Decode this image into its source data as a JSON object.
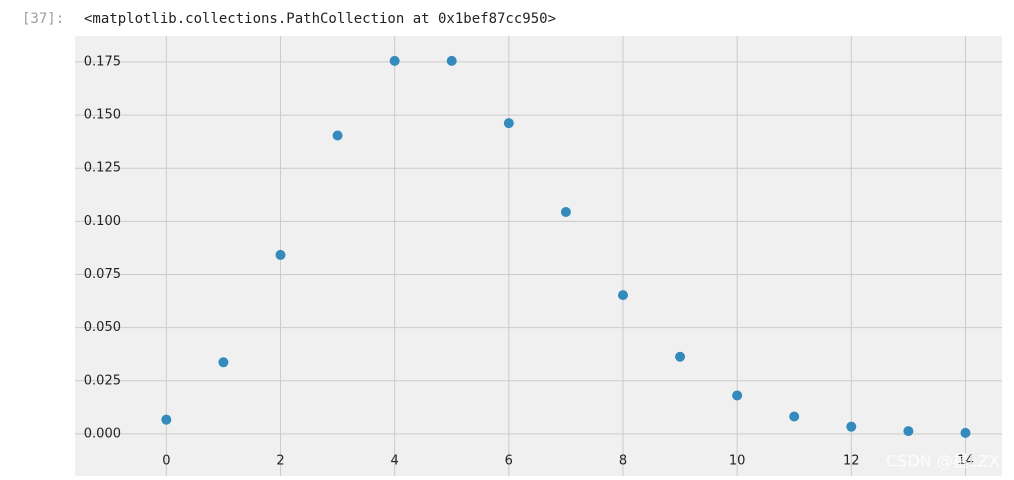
{
  "cell": {
    "prompt": "[37]:",
    "output": "<matplotlib.collections.PathCollection at 0x1bef87cc950>"
  },
  "watermark": "CSDN @星LZX",
  "chart_data": {
    "type": "scatter",
    "x": [
      0,
      1,
      2,
      3,
      4,
      5,
      6,
      7,
      8,
      9,
      10,
      11,
      12,
      13,
      14
    ],
    "values": [
      0.0067,
      0.0337,
      0.0842,
      0.1404,
      0.1755,
      0.1755,
      0.1462,
      0.1044,
      0.0653,
      0.0363,
      0.0181,
      0.0082,
      0.0034,
      0.0013,
      0.0005
    ],
    "color": "#348abd",
    "xlim": [
      -1.6,
      14.64
    ],
    "ylim": [
      -0.0198,
      0.1872
    ],
    "xticks": [
      0,
      2,
      4,
      6,
      8,
      10,
      12,
      14
    ],
    "yticks": [
      {
        "value": 0,
        "label": "0.000"
      },
      0.025,
      {
        "value": 0.05,
        "label": "0.050"
      },
      0.075,
      {
        "value": 0.1,
        "label": "0.100"
      },
      0.125,
      {
        "value": 0.15,
        "label": "0.150"
      },
      0.175
    ],
    "grid": true,
    "background": "#f0f0f0"
  }
}
